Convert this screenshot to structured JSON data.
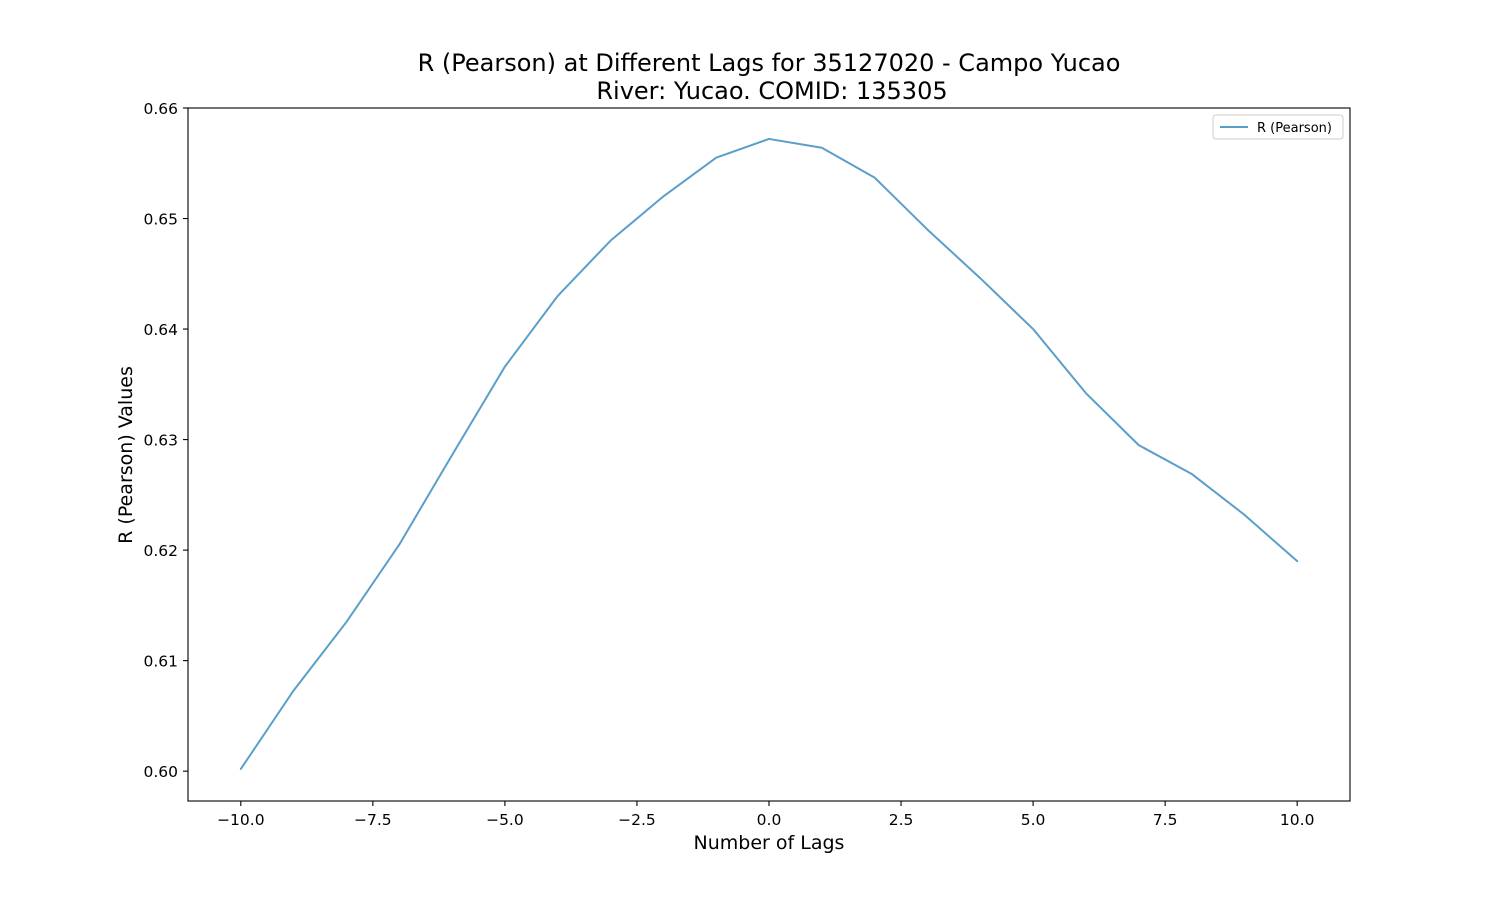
{
  "chart_data": {
    "type": "line",
    "title": "R (Pearson) at Different Lags for 35127020 - Campo Yucao",
    "subtitle": "River: Yucao. COMID: 135305",
    "xlabel": "Number of Lags",
    "ylabel": "R (Pearson) Values",
    "xlim": [
      -11.0,
      11.0
    ],
    "ylim": [
      0.5973,
      0.66
    ],
    "xticks": [
      -10.0,
      -7.5,
      -5.0,
      -2.5,
      0.0,
      2.5,
      5.0,
      7.5,
      10.0
    ],
    "xtick_labels": [
      "−10.0",
      "−7.5",
      "−5.0",
      "−2.5",
      "0.0",
      "2.5",
      "5.0",
      "7.5",
      "10.0"
    ],
    "yticks": [
      0.6,
      0.61,
      0.62,
      0.63,
      0.64,
      0.65,
      0.66
    ],
    "ytick_labels": [
      "0.60",
      "0.61",
      "0.62",
      "0.63",
      "0.64",
      "0.65",
      "0.66"
    ],
    "grid": false,
    "legend_position": "top-right",
    "series": [
      {
        "name": "R (Pearson)",
        "color": "#5b9ec9",
        "x": [
          -10,
          -9,
          -8,
          -7,
          -6,
          -5,
          -4,
          -3,
          -2,
          -1,
          0,
          1,
          2,
          3,
          4,
          5,
          6,
          7,
          8,
          9,
          10
        ],
        "y": [
          0.6002,
          0.6073,
          0.6135,
          0.6205,
          0.6286,
          0.6366,
          0.643,
          0.648,
          0.652,
          0.6555,
          0.6572,
          0.6564,
          0.6537,
          0.649,
          0.6446,
          0.64,
          0.6342,
          0.6295,
          0.6269,
          0.6232,
          0.619
        ]
      }
    ]
  }
}
